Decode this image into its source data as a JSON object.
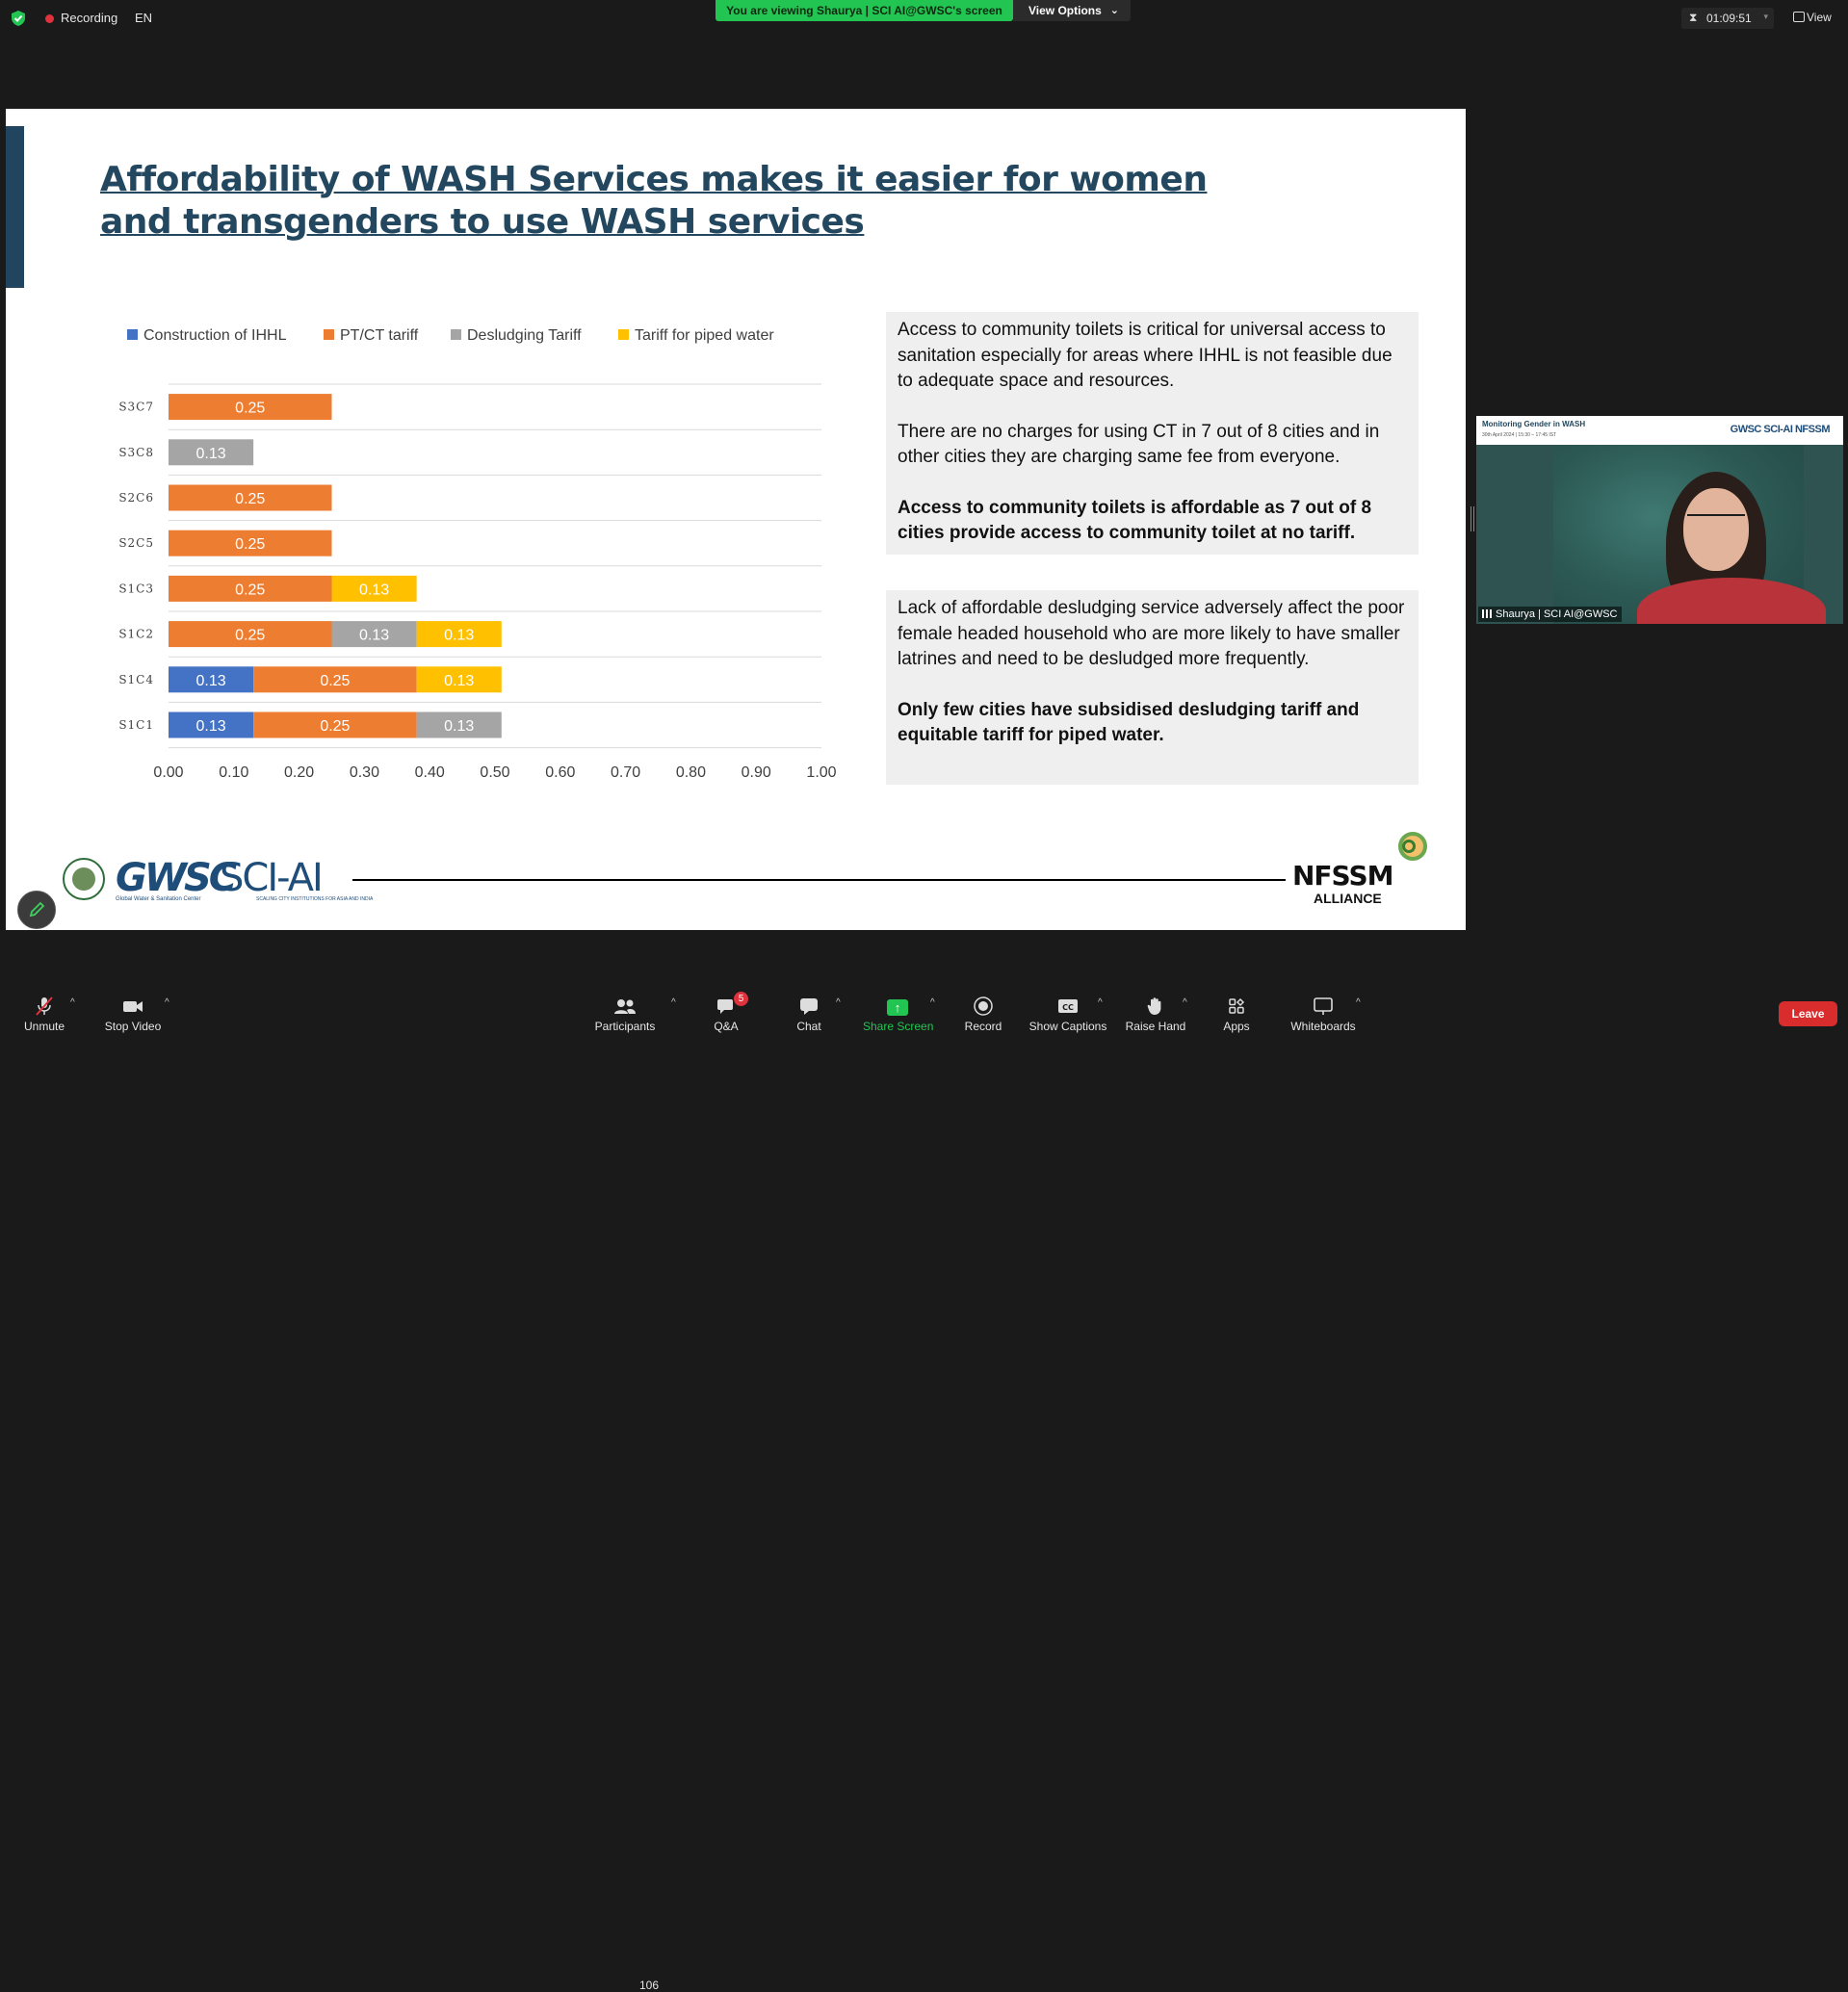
{
  "top_bar": {
    "recording_label": "Recording",
    "language": "EN",
    "viewing_banner": "You are viewing Shaurya | SCI AI@GWSC's screen",
    "view_options": "View Options",
    "timer": "01:09:51",
    "view_label": "View"
  },
  "slide": {
    "title": "Affordability of WASH Services makes it easier for women and transgenders to use WASH services",
    "box1": {
      "p1": "Access to community toilets is critical for universal access to sanitation especially for areas where IHHL is not feasible due to adequate space and resources.",
      "p2": "There are no charges for using CT in 7 out of 8 cities and in other cities they are charging same fee from everyone.",
      "p3": "Access to community toilets is affordable as 7 out of 8 cities provide access to community toilet at no tariff."
    },
    "box2": {
      "p1": "Lack of affordable desludging service adversely affect the poor female headed household who are more likely to have smaller latrines and need to be desludged more frequently.",
      "p2": "Only few cities have subsidised desludging tariff and equitable tariff for piped water."
    },
    "footer": {
      "gwsc": "GWSC",
      "gwsc_sub": "Global Water & Sanitation Center",
      "sciai": "SCI-AI",
      "sciai_sub": "SCALING CITY INSTITUTIONS FOR ASIA AND INDIA",
      "nfssm": "NFSSM",
      "alliance": "ALLIANCE"
    }
  },
  "chart_data": {
    "type": "bar",
    "orientation": "horizontal",
    "stacked": true,
    "categories": [
      "S3C7",
      "S3C8",
      "S2C6",
      "S2C5",
      "S1C3",
      "S1C2",
      "S1C4",
      "S1C1"
    ],
    "series": [
      {
        "name": "Construction of IHHL",
        "color": "#4472c4",
        "values": [
          0,
          0,
          0,
          0,
          0,
          0,
          0.13,
          0.13
        ]
      },
      {
        "name": "PT/CT tariff",
        "color": "#ed7d31",
        "values": [
          0.25,
          0,
          0.25,
          0.25,
          0.25,
          0.25,
          0.25,
          0.25
        ]
      },
      {
        "name": "Desludging Tariff",
        "color": "#a5a5a5",
        "values": [
          0,
          0.13,
          0,
          0,
          0,
          0.13,
          0,
          0.13
        ]
      },
      {
        "name": "Tariff for piped water",
        "color": "#ffc000",
        "values": [
          0,
          0,
          0,
          0,
          0.13,
          0.13,
          0.13,
          0
        ]
      }
    ],
    "xlim": [
      0,
      1
    ],
    "xticks": [
      "0.00",
      "0.10",
      "0.20",
      "0.30",
      "0.40",
      "0.50",
      "0.60",
      "0.70",
      "0.80",
      "0.90",
      "1.00"
    ],
    "grid": "horizontal",
    "legend": "top"
  },
  "video": {
    "name": "Shaurya | SCI AI@GWSC",
    "header_title": "Monitoring Gender in WASH",
    "header_date": "30th April 2024 | 15:30 – 17:45 IST",
    "header_logos": "GWSC SCI-AI NFSSM"
  },
  "toolbar": {
    "unmute": "Unmute",
    "stop_video": "Stop Video",
    "participants": "Participants",
    "participants_count": "106",
    "qa": "Q&A",
    "qa_badge": "5",
    "chat": "Chat",
    "share_screen": "Share Screen",
    "record": "Record",
    "show_captions": "Show Captions",
    "raise_hand": "Raise Hand",
    "apps": "Apps",
    "whiteboards": "Whiteboards",
    "leave": "Leave"
  }
}
